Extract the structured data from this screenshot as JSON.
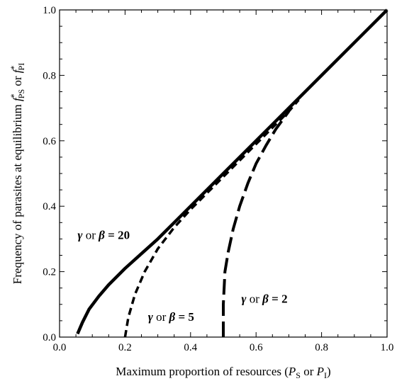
{
  "chart_data": {
    "type": "line",
    "title": "",
    "xlabel": {
      "text": "Maximum proportion of resources (",
      "v1": "P",
      "s1": "S",
      "or": " or ",
      "v2": "P",
      "s2": "I",
      "close": ")"
    },
    "ylabel": {
      "text": "Frequency of parasites at equilibrium ",
      "v1": "f",
      "sup": "*",
      "s1": "PS",
      "or": " or ",
      "v2": "f",
      "s2": "PI"
    },
    "xlim": [
      0.0,
      1.0
    ],
    "ylim": [
      0.0,
      1.0
    ],
    "x_ticks": [
      "0.0",
      "0.2",
      "0.4",
      "0.6",
      "0.8",
      "1.0"
    ],
    "y_ticks": [
      "0.0",
      "0.2",
      "0.4",
      "0.6",
      "0.8",
      "1.0"
    ],
    "grid": false,
    "series": [
      {
        "style": "solid",
        "color": "#000000",
        "points": [
          [
            0.055,
            0.01
          ],
          [
            0.07,
            0.045
          ],
          [
            0.09,
            0.085
          ],
          [
            0.12,
            0.125
          ],
          [
            0.15,
            0.16
          ],
          [
            0.2,
            0.21
          ],
          [
            0.25,
            0.255
          ],
          [
            0.3,
            0.3
          ],
          [
            0.35,
            0.35
          ],
          [
            0.4,
            0.4
          ],
          [
            0.5,
            0.5
          ],
          [
            0.6,
            0.6
          ],
          [
            0.7,
            0.7
          ],
          [
            0.8,
            0.8
          ],
          [
            0.9,
            0.9
          ],
          [
            1.0,
            1.0
          ]
        ]
      },
      {
        "style": "short-dash",
        "color": "#000000",
        "points": [
          [
            0.2,
            0.0
          ],
          [
            0.21,
            0.06
          ],
          [
            0.23,
            0.13
          ],
          [
            0.26,
            0.2
          ],
          [
            0.3,
            0.27
          ],
          [
            0.35,
            0.335
          ],
          [
            0.4,
            0.39
          ],
          [
            0.45,
            0.44
          ],
          [
            0.5,
            0.49
          ],
          [
            0.55,
            0.54
          ],
          [
            0.6,
            0.59
          ],
          [
            0.65,
            0.64
          ],
          [
            0.7,
            0.69
          ],
          [
            0.73,
            0.725
          ]
        ]
      },
      {
        "style": "long-dash",
        "color": "#000000",
        "points": [
          [
            0.5,
            0.0
          ],
          [
            0.5,
            0.1
          ],
          [
            0.505,
            0.2
          ],
          [
            0.515,
            0.26
          ],
          [
            0.53,
            0.33
          ],
          [
            0.55,
            0.4
          ],
          [
            0.575,
            0.47
          ],
          [
            0.6,
            0.53
          ],
          [
            0.63,
            0.585
          ],
          [
            0.66,
            0.635
          ],
          [
            0.7,
            0.69
          ]
        ]
      }
    ],
    "annotations": [
      {
        "greek1": "γ",
        "or": " or ",
        "greek2": "β",
        "eq": " = ",
        "value": "20",
        "x": 0.055,
        "y": 0.3
      },
      {
        "greek1": "γ",
        "or": " or ",
        "greek2": "β",
        "eq": " = ",
        "value": "5",
        "x": 0.27,
        "y": 0.05
      },
      {
        "greek1": "γ",
        "or": " or ",
        "greek2": "β",
        "eq": " = ",
        "value": "2",
        "x": 0.555,
        "y": 0.105
      }
    ]
  }
}
